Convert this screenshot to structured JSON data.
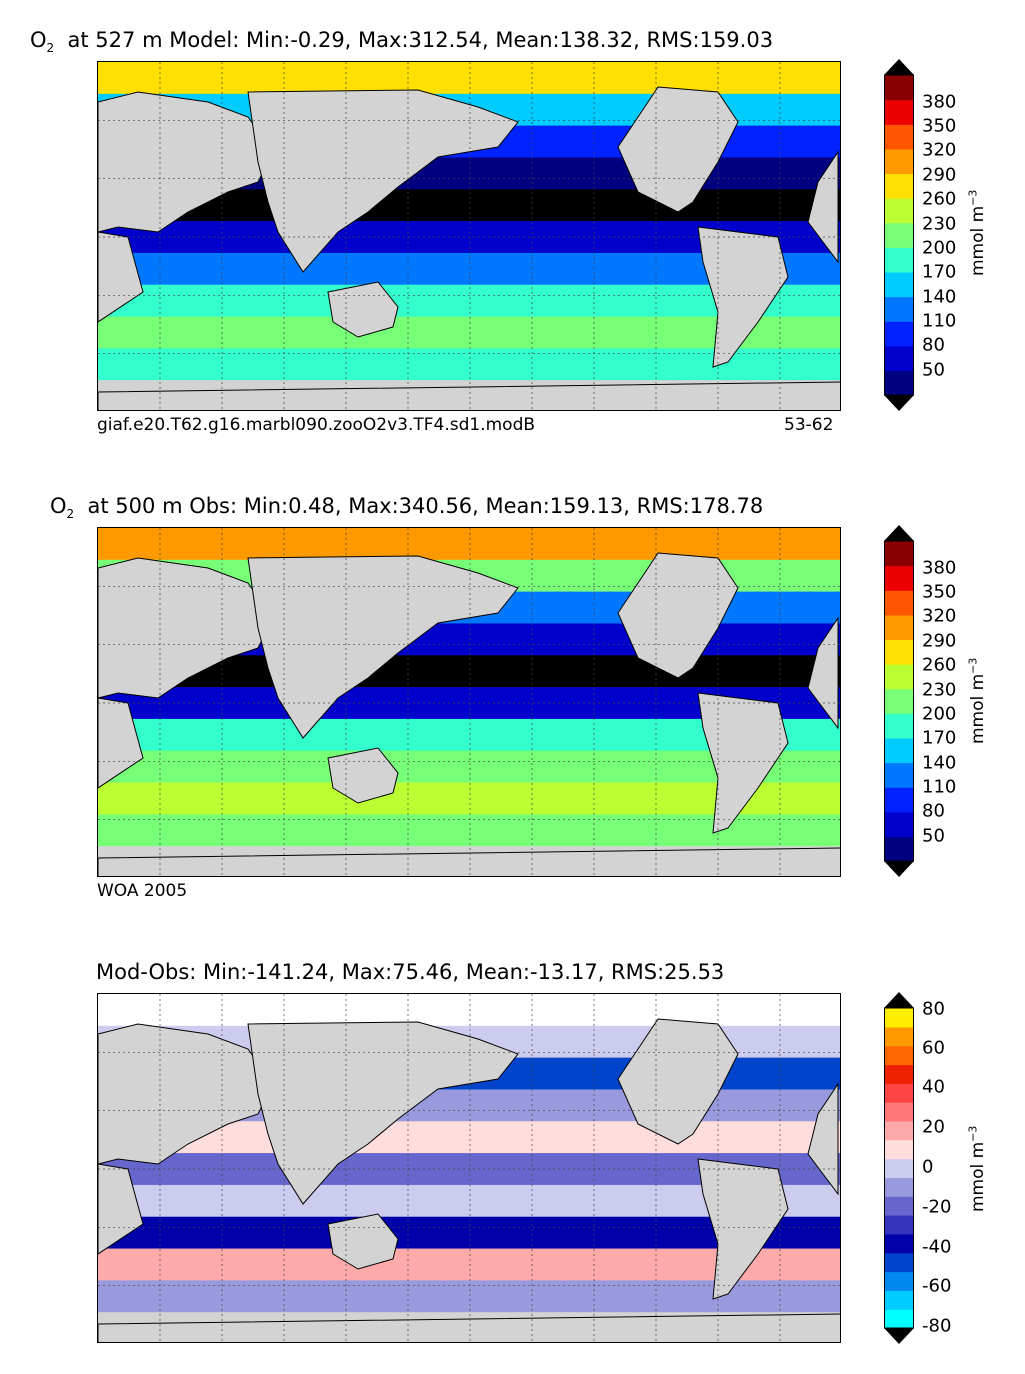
{
  "panels": [
    {
      "title_species": "O",
      "title_sub": "2",
      "title_rest": "at 527 m Model: Min:-0.29, Max:312.54, Mean:138.32, RMS:159.03",
      "caption_left": "giaf.e20.T62.g16.marbl090.zooO2v3.TF4.sd1.modB",
      "caption_right": "53-62",
      "colorbar": {
        "unit_base": "mmol m",
        "unit_exp": "−3",
        "ticks": [
          "380",
          "350",
          "320",
          "290",
          "260",
          "230",
          "200",
          "170",
          "140",
          "110",
          "80",
          "50"
        ],
        "colors": [
          "#000080",
          "#0000cd",
          "#0022ff",
          "#0077ff",
          "#00ccff",
          "#33ffcc",
          "#77ff77",
          "#bbff33",
          "#ffe000",
          "#ff9900",
          "#ff5500",
          "#ee0000",
          "#880000"
        ]
      }
    },
    {
      "title_species": "O",
      "title_sub": "2",
      "title_rest": "at 500 m Obs: Min:0.48, Max:340.56, Mean:159.13, RMS:178.78",
      "caption_left": "WOA 2005",
      "caption_right": "",
      "colorbar": {
        "unit_base": "mmol m",
        "unit_exp": "−3",
        "ticks": [
          "380",
          "350",
          "320",
          "290",
          "260",
          "230",
          "200",
          "170",
          "140",
          "110",
          "80",
          "50"
        ],
        "colors": [
          "#000080",
          "#0000cd",
          "#0022ff",
          "#0077ff",
          "#00ccff",
          "#33ffcc",
          "#77ff77",
          "#bbff33",
          "#ffe000",
          "#ff9900",
          "#ff5500",
          "#ee0000",
          "#880000"
        ]
      }
    },
    {
      "title_species": "",
      "title_sub": "",
      "title_rest": "Mod-Obs: Min:-141.24, Max:75.46, Mean:-13.17, RMS:25.53",
      "caption_left": "",
      "caption_right": "",
      "colorbar": {
        "unit_base": "mmol m",
        "unit_exp": "−3",
        "ticks": [
          "80",
          "60",
          "40",
          "20",
          "0",
          "-20",
          "-40",
          "-60",
          "-80"
        ],
        "colors": [
          "#00ffff",
          "#00ccff",
          "#0088ee",
          "#0044cc",
          "#0000aa",
          "#3333bb",
          "#6666cc",
          "#9999dd",
          "#ccccee",
          "#ffdddd",
          "#ffaaaa",
          "#ff7777",
          "#ff4444",
          "#ee2200",
          "#ff6600",
          "#ff9900",
          "#ffee00"
        ]
      }
    }
  ]
}
